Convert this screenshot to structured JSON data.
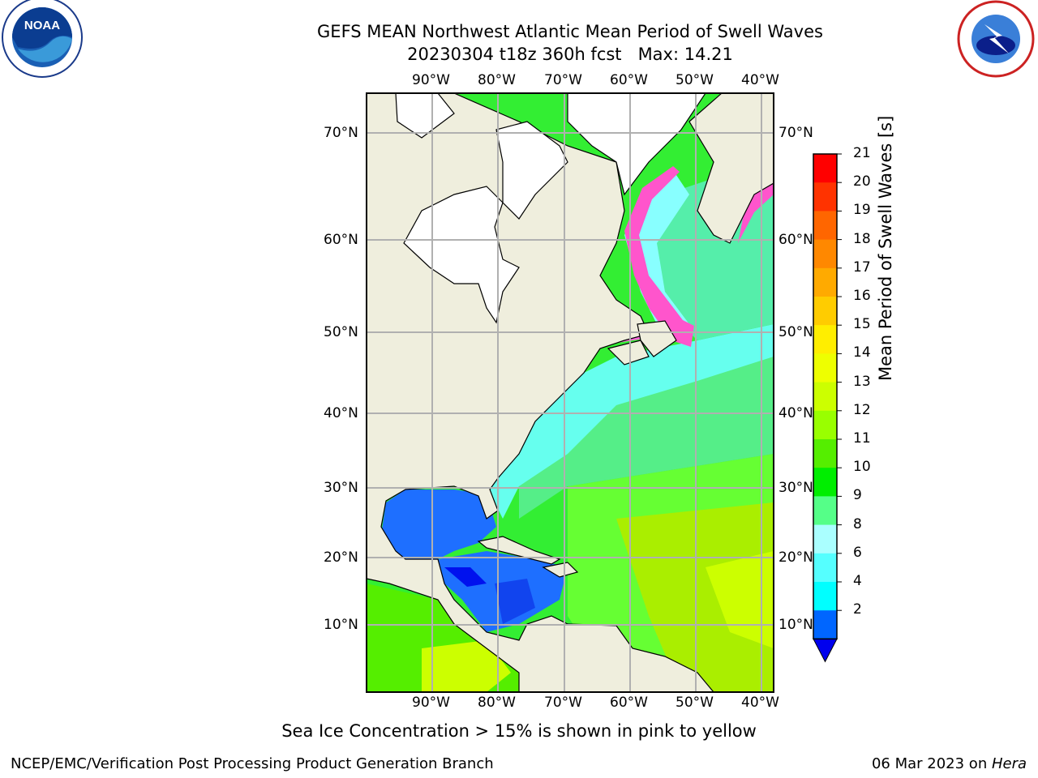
{
  "header": {
    "title_line1": "GEFS MEAN Northwest Atlantic Mean Period of Swell Waves",
    "title_line2": "20230304 t18z 360h fcst   Max: 14.21"
  },
  "logos": {
    "left": {
      "name": "noaa-logo",
      "text": "NOAA",
      "ring_text": "NATIONAL OCEANIC AND ATMOSPHERIC ADMINISTRATION · U.S. DEPARTMENT OF COMMERCE"
    },
    "right": {
      "name": "nws-logo",
      "ring_text": "NATIONAL WEATHER SERVICE"
    }
  },
  "map": {
    "lon_ticks": [
      "90°W",
      "80°W",
      "70°W",
      "60°W",
      "50°W",
      "40°W"
    ],
    "lat_ticks": [
      "70°N",
      "60°N",
      "50°N",
      "40°N",
      "30°N",
      "20°N",
      "10°N"
    ],
    "colors": {
      "land": "#efeedd",
      "ocean_default": "#33ee33",
      "grid": "#b0b0b0"
    }
  },
  "colorbar": {
    "title": "Mean Period of Swell Waves [s]",
    "labels": [
      "21",
      "20",
      "19",
      "18",
      "17",
      "16",
      "15",
      "14",
      "13",
      "12",
      "11",
      "10",
      "9",
      "8",
      "6",
      "4",
      "2"
    ],
    "colors": [
      "#ff0000",
      "#ff3300",
      "#ff6600",
      "#ff8800",
      "#ffaa00",
      "#ffcc00",
      "#ffee00",
      "#eeff00",
      "#ccff00",
      "#99ff00",
      "#55ee00",
      "#00ee00",
      "#55ff88",
      "#aaffff",
      "#55ffff",
      "#00ffff",
      "#0066ff"
    ],
    "extend_color": "#0000ee"
  },
  "footer": {
    "note": "Sea Ice Concentration > 15% is shown in pink to yellow",
    "left": "NCEP/EMC/Verification Post Processing Product Generation Branch",
    "right_date": "06 Mar 2023 on ",
    "right_host": "Hera"
  }
}
